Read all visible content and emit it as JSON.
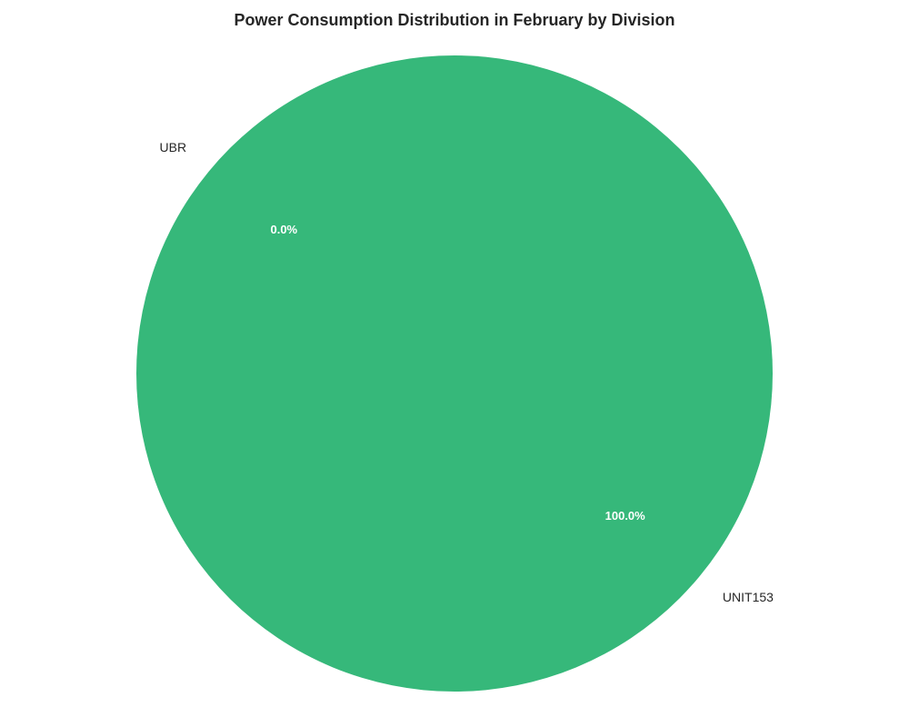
{
  "chart_data": {
    "type": "pie",
    "title": "Power Consumption Distribution in February by Division",
    "categories": [
      "UBR",
      "UNIT153"
    ],
    "values": [
      0.0,
      100.0
    ],
    "percent_labels": [
      "0.0%",
      "100.0%"
    ],
    "colors": [
      "#4c9be8",
      "#36b87a"
    ],
    "start_angle_deg": 140,
    "legend": "none"
  }
}
